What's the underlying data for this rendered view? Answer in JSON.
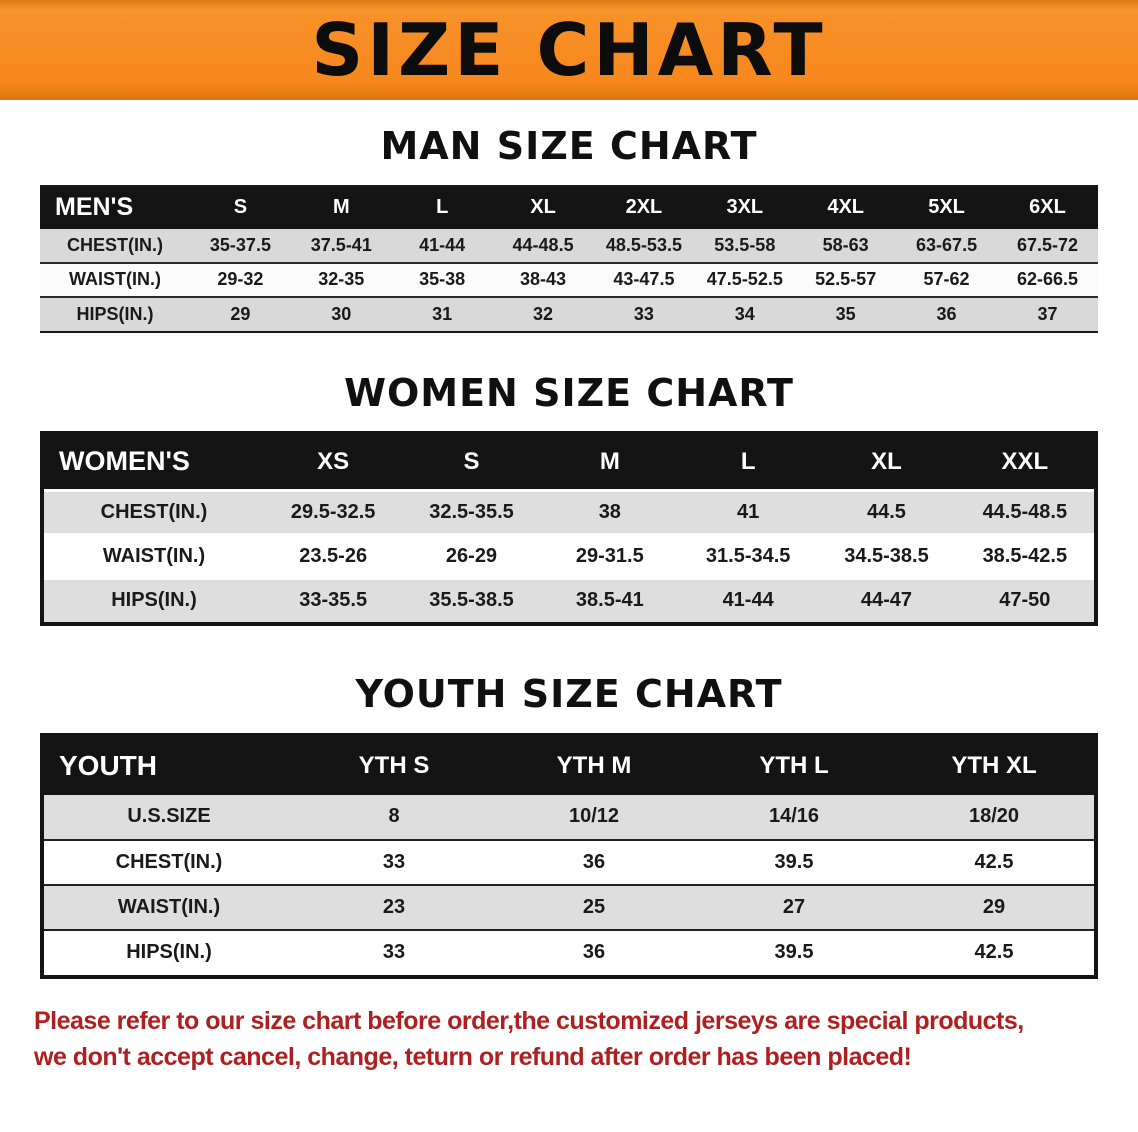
{
  "banner": {
    "title": "SIZE CHART",
    "background_color": "#f6871d",
    "title_color": "#0c0c0c"
  },
  "sections": [
    {
      "heading": "MAN SIZE CHART",
      "table": {
        "header": [
          "MEN'S",
          "S",
          "M",
          "L",
          "XL",
          "2XL",
          "3XL",
          "4XL",
          "5XL",
          "6XL"
        ],
        "rows": [
          [
            "CHEST(IN.)",
            "35-37.5",
            "37.5-41",
            "41-44",
            "44-48.5",
            "48.5-53.5",
            "53.5-58",
            "58-63",
            "63-67.5",
            "67.5-72"
          ],
          [
            "WAIST(IN.)",
            "29-32",
            "32-35",
            "35-38",
            "38-43",
            "43-47.5",
            "47.5-52.5",
            "52.5-57",
            "57-62",
            "62-66.5"
          ],
          [
            "HIPS(IN.)",
            "29",
            "30",
            "31",
            "32",
            "33",
            "34",
            "35",
            "36",
            "37"
          ]
        ]
      }
    },
    {
      "heading": "WOMEN SIZE CHART",
      "table": {
        "header": [
          "WOMEN'S",
          "XS",
          "S",
          "M",
          "L",
          "XL",
          "XXL"
        ],
        "rows": [
          [
            "CHEST(IN.)",
            "29.5-32.5",
            "32.5-35.5",
            "38",
            "41",
            "44.5",
            "44.5-48.5"
          ],
          [
            "WAIST(IN.)",
            "23.5-26",
            "26-29",
            "29-31.5",
            "31.5-34.5",
            "34.5-38.5",
            "38.5-42.5"
          ],
          [
            "HIPS(IN.)",
            "33-35.5",
            "35.5-38.5",
            "38.5-41",
            "41-44",
            "44-47",
            "47-50"
          ]
        ]
      }
    },
    {
      "heading": "YOUTH SIZE CHART",
      "table": {
        "header": [
          "YOUTH",
          "YTH S",
          "YTH M",
          "YTH L",
          "YTH XL"
        ],
        "rows": [
          [
            "U.S.SIZE",
            "8",
            "10/12",
            "14/16",
            "18/20"
          ],
          [
            "CHEST(IN.)",
            "33",
            "36",
            "39.5",
            "42.5"
          ],
          [
            "WAIST(IN.)",
            "23",
            "25",
            "27",
            "29"
          ],
          [
            "HIPS(IN.)",
            "33",
            "36",
            "39.5",
            "42.5"
          ]
        ]
      }
    }
  ],
  "footer": {
    "line1": "Please refer to our size chart before order,the customized jerseys are special products,",
    "line2": "we don't accept cancel, change, teturn or refund after order has been placed!",
    "text_color": "#b01f1f"
  }
}
